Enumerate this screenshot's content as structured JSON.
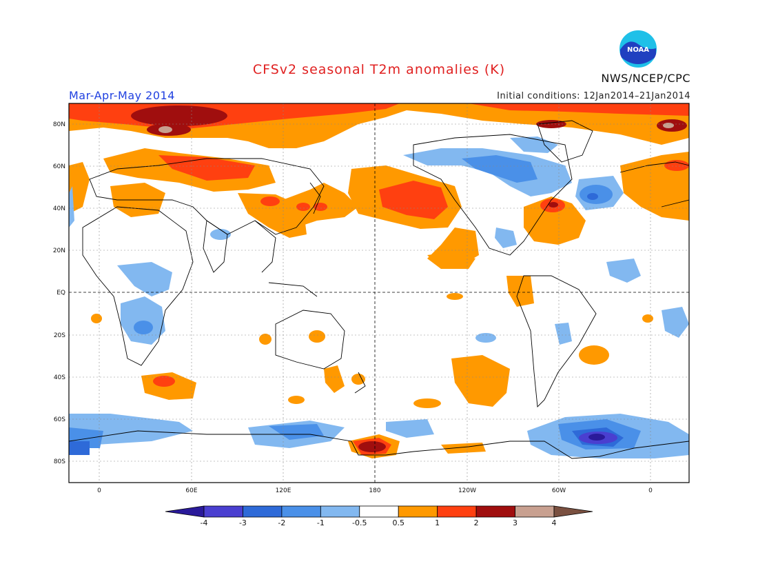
{
  "title": "CFSv2 seasonal T2m anomalies (K)",
  "season": "Mar-Apr-May 2014",
  "agency": "NWS/NCEP/CPC",
  "initial_conditions": "Initial conditions: 12Jan2014–21Jan2014",
  "logo_text": "NOAA",
  "lat_labels": [
    "80N",
    "60N",
    "40N",
    "20N",
    "EQ",
    "20S",
    "40S",
    "60S",
    "80S"
  ],
  "lon_labels": [
    "0",
    "60E",
    "120E",
    "180",
    "120W",
    "60W",
    "0"
  ],
  "colorbar": {
    "labels": [
      "-4",
      "-3",
      "-2",
      "-1",
      "-0.5",
      "0.5",
      "1",
      "2",
      "3",
      "4"
    ],
    "colors": [
      "#2a1a9a",
      "#4a3fd0",
      "#2e6ad8",
      "#4a90e8",
      "#82b8f0",
      "#ffffff",
      "#ff9900",
      "#ff4010",
      "#a00e0e",
      "#c8a090",
      "#7a5040"
    ]
  }
}
